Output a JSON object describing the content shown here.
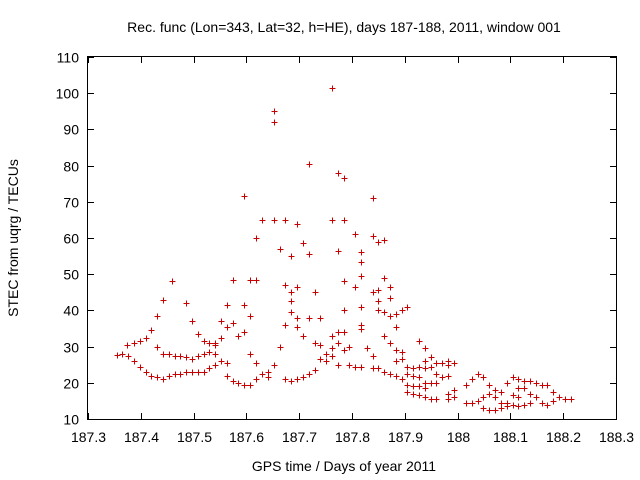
{
  "chart_data": {
    "type": "scatter",
    "title": "Rec. func (Lon=343, Lat=32, h=HE), days 187-188, 2011, window 001",
    "xlabel": "GPS time / Days of year 2011",
    "ylabel": "STEC from uqrg / TECUs",
    "xlim": [
      187.3,
      188.3
    ],
    "ylim": [
      10,
      110
    ],
    "xticks": [
      187.3,
      187.4,
      187.5,
      187.6,
      187.7,
      187.8,
      187.9,
      188,
      188.1,
      188.2,
      188.3
    ],
    "xtick_labels": [
      "187.3",
      "187.4",
      "187.5",
      "187.6",
      "187.7",
      "187.8",
      "187.9",
      "188",
      "188.1",
      "188.2",
      "188.3"
    ],
    "yticks": [
      10,
      20,
      30,
      40,
      50,
      60,
      70,
      80,
      90,
      100,
      110
    ],
    "ytick_labels": [
      "10",
      "20",
      "30",
      "40",
      "50",
      "60",
      "70",
      "80",
      "90",
      "100",
      "110"
    ],
    "grid": false,
    "marker": "plus",
    "marker_color": "#c80000",
    "points": [
      [
        187.354,
        27.7
      ],
      [
        187.365,
        28.0
      ],
      [
        187.376,
        27.5
      ],
      [
        187.373,
        30.5
      ],
      [
        187.387,
        31.0
      ],
      [
        187.398,
        31.5
      ],
      [
        187.387,
        26.0
      ],
      [
        187.398,
        24.5
      ],
      [
        187.409,
        23.0
      ],
      [
        187.42,
        22.0
      ],
      [
        187.431,
        21.5
      ],
      [
        187.442,
        21.0
      ],
      [
        187.409,
        32.5
      ],
      [
        187.42,
        34.5
      ],
      [
        187.431,
        38.5
      ],
      [
        187.442,
        43.0
      ],
      [
        187.459,
        48.0
      ],
      [
        187.431,
        30.0
      ],
      [
        187.442,
        28.0
      ],
      [
        187.453,
        28.0
      ],
      [
        187.464,
        27.5
      ],
      [
        187.475,
        27.5
      ],
      [
        187.486,
        27.0
      ],
      [
        187.453,
        22.0
      ],
      [
        187.464,
        22.5
      ],
      [
        187.475,
        22.5
      ],
      [
        187.486,
        23.0
      ],
      [
        187.497,
        23.0
      ],
      [
        187.508,
        23.0
      ],
      [
        187.486,
        42.0
      ],
      [
        187.497,
        37.0
      ],
      [
        187.508,
        33.5
      ],
      [
        187.519,
        31.5
      ],
      [
        187.53,
        31.0
      ],
      [
        187.541,
        31.0
      ],
      [
        187.497,
        26.5
      ],
      [
        187.508,
        27.5
      ],
      [
        187.519,
        28.0
      ],
      [
        187.53,
        28.5
      ],
      [
        187.541,
        28.0
      ],
      [
        187.519,
        23.0
      ],
      [
        187.53,
        24.0
      ],
      [
        187.541,
        25.0
      ],
      [
        187.552,
        26.0
      ],
      [
        187.563,
        25.5
      ],
      [
        187.541,
        30.5
      ],
      [
        187.552,
        32.5
      ],
      [
        187.563,
        35.5
      ],
      [
        187.563,
        41.5
      ],
      [
        187.574,
        48.5
      ],
      [
        187.574,
        36.5
      ],
      [
        187.552,
        37.0
      ],
      [
        187.563,
        22.0
      ],
      [
        187.574,
        20.5
      ],
      [
        187.585,
        20.0
      ],
      [
        187.596,
        19.5
      ],
      [
        187.607,
        19.5
      ],
      [
        187.585,
        33.0
      ],
      [
        187.596,
        34.0
      ],
      [
        187.596,
        41.5
      ],
      [
        187.596,
        71.5
      ],
      [
        187.607,
        48.5
      ],
      [
        187.618,
        48.5
      ],
      [
        187.607,
        38.5
      ],
      [
        187.607,
        28.0
      ],
      [
        187.618,
        25.5
      ],
      [
        187.618,
        21.0
      ],
      [
        187.629,
        22.5
      ],
      [
        187.64,
        23.0
      ],
      [
        187.618,
        60.0
      ],
      [
        187.629,
        65.0
      ],
      [
        187.652,
        95.0
      ],
      [
        187.652,
        92.0
      ],
      [
        187.652,
        65.0
      ],
      [
        187.64,
        21.5
      ],
      [
        187.652,
        25.0
      ],
      [
        187.663,
        30.0
      ],
      [
        187.663,
        57.0
      ],
      [
        187.674,
        21.0
      ],
      [
        187.685,
        20.5
      ],
      [
        187.674,
        47.0
      ],
      [
        187.685,
        45.0
      ],
      [
        187.685,
        42.5
      ],
      [
        187.674,
        65.0
      ],
      [
        187.685,
        55.0
      ],
      [
        187.696,
        46.5
      ],
      [
        187.674,
        36.0
      ],
      [
        187.685,
        39.5
      ],
      [
        187.696,
        35.5
      ],
      [
        187.696,
        38.0
      ],
      [
        187.707,
        33.0
      ],
      [
        187.707,
        58.5
      ],
      [
        187.696,
        21.0
      ],
      [
        187.707,
        21.5
      ],
      [
        187.718,
        22.5
      ],
      [
        187.729,
        23.5
      ],
      [
        187.696,
        64.0
      ],
      [
        187.718,
        80.5
      ],
      [
        187.718,
        55.5
      ],
      [
        187.718,
        38.0
      ],
      [
        187.729,
        45.0
      ],
      [
        187.729,
        31.0
      ],
      [
        187.74,
        30.5
      ],
      [
        187.74,
        26.5
      ],
      [
        187.751,
        26.0
      ],
      [
        187.751,
        28.0
      ],
      [
        187.762,
        27.5
      ],
      [
        187.762,
        29.5
      ],
      [
        187.74,
        38.0
      ],
      [
        187.762,
        101.5
      ],
      [
        187.762,
        65.0
      ],
      [
        187.762,
        33.0
      ],
      [
        187.773,
        34.0
      ],
      [
        187.773,
        31.0
      ],
      [
        187.773,
        25.0
      ],
      [
        187.773,
        78.0
      ],
      [
        187.784,
        76.5
      ],
      [
        187.784,
        65.0
      ],
      [
        187.773,
        56.5
      ],
      [
        187.784,
        48.0
      ],
      [
        187.784,
        40.0
      ],
      [
        187.784,
        34.0
      ],
      [
        187.784,
        29.0
      ],
      [
        187.795,
        30.0
      ],
      [
        187.795,
        25.0
      ],
      [
        187.806,
        24.5
      ],
      [
        187.817,
        24.5
      ],
      [
        187.806,
        61.0
      ],
      [
        187.806,
        46.5
      ],
      [
        187.817,
        49.5
      ],
      [
        187.817,
        56.0
      ],
      [
        187.817,
        53.5
      ],
      [
        187.817,
        41.0
      ],
      [
        187.817,
        36.0
      ],
      [
        187.817,
        35.0
      ],
      [
        187.828,
        29.5
      ],
      [
        187.839,
        27.5
      ],
      [
        187.839,
        24.0
      ],
      [
        187.85,
        24.0
      ],
      [
        187.839,
        71.0
      ],
      [
        187.839,
        60.5
      ],
      [
        187.85,
        59.0
      ],
      [
        187.861,
        59.5
      ],
      [
        187.839,
        45.0
      ],
      [
        187.85,
        45.5
      ],
      [
        187.85,
        42.5
      ],
      [
        187.85,
        40.0
      ],
      [
        187.861,
        39.5
      ],
      [
        187.861,
        49.0
      ],
      [
        187.872,
        46.5
      ],
      [
        187.872,
        43.5
      ],
      [
        187.861,
        33.0
      ],
      [
        187.872,
        31.0
      ],
      [
        187.883,
        29.0
      ],
      [
        187.894,
        28.5
      ],
      [
        187.861,
        23.0
      ],
      [
        187.872,
        22.5
      ],
      [
        187.872,
        38.5
      ],
      [
        187.883,
        39.0
      ],
      [
        187.883,
        35.5
      ],
      [
        187.894,
        40.0
      ],
      [
        187.905,
        41.0
      ],
      [
        187.883,
        26.0
      ],
      [
        187.894,
        26.5
      ],
      [
        187.905,
        24.5
      ],
      [
        187.916,
        24.0
      ],
      [
        187.927,
        24.5
      ],
      [
        187.938,
        24.0
      ],
      [
        187.883,
        22.0
      ],
      [
        187.894,
        21.0
      ],
      [
        187.905,
        19.5
      ],
      [
        187.916,
        19.0
      ],
      [
        187.927,
        19.0
      ],
      [
        187.938,
        18.5
      ],
      [
        187.905,
        17.5
      ],
      [
        187.916,
        17.0
      ],
      [
        187.927,
        16.5
      ],
      [
        187.938,
        16.0
      ],
      [
        187.949,
        15.5
      ],
      [
        187.96,
        15.5
      ],
      [
        187.905,
        22.5
      ],
      [
        187.916,
        22.0
      ],
      [
        187.927,
        21.5
      ],
      [
        187.938,
        20.0
      ],
      [
        187.949,
        20.0
      ],
      [
        187.96,
        20.0
      ],
      [
        187.927,
        31.5
      ],
      [
        187.938,
        29.5
      ],
      [
        187.949,
        27.0
      ],
      [
        187.96,
        25.5
      ],
      [
        187.971,
        25.5
      ],
      [
        187.982,
        26.0
      ],
      [
        187.938,
        26.0
      ],
      [
        187.949,
        24.5
      ],
      [
        187.96,
        22.5
      ],
      [
        187.971,
        21.5
      ],
      [
        187.982,
        22.0
      ],
      [
        187.993,
        18.0
      ],
      [
        187.982,
        25.0
      ],
      [
        187.993,
        25.5
      ],
      [
        187.982,
        17.0
      ],
      [
        187.993,
        16.0
      ],
      [
        187.982,
        15.5
      ],
      [
        188.016,
        19.5
      ],
      [
        188.016,
        14.5
      ],
      [
        188.027,
        14.5
      ],
      [
        188.038,
        15.0
      ],
      [
        188.027,
        21.0
      ],
      [
        188.038,
        22.5
      ],
      [
        188.049,
        21.5
      ],
      [
        188.049,
        16.0
      ],
      [
        188.06,
        17.0
      ],
      [
        188.071,
        16.0
      ],
      [
        188.049,
        13.0
      ],
      [
        188.06,
        12.5
      ],
      [
        188.06,
        19.5
      ],
      [
        188.071,
        18.0
      ],
      [
        188.082,
        17.5
      ],
      [
        188.082,
        14.5
      ],
      [
        188.093,
        14.5
      ],
      [
        188.104,
        14.0
      ],
      [
        188.071,
        12.5
      ],
      [
        188.082,
        13.0
      ],
      [
        188.093,
        13.5
      ],
      [
        188.093,
        20.0
      ],
      [
        188.104,
        21.5
      ],
      [
        188.115,
        21.0
      ],
      [
        188.115,
        13.5
      ],
      [
        188.126,
        14.0
      ],
      [
        188.137,
        14.5
      ],
      [
        188.104,
        16.5
      ],
      [
        188.115,
        18.5
      ],
      [
        188.126,
        20.5
      ],
      [
        188.137,
        17.0
      ],
      [
        188.148,
        16.0
      ],
      [
        188.148,
        20.0
      ],
      [
        188.159,
        19.5
      ],
      [
        188.17,
        19.5
      ],
      [
        188.159,
        14.5
      ],
      [
        188.17,
        14.0
      ],
      [
        188.181,
        15.0
      ],
      [
        188.181,
        17.5
      ],
      [
        188.192,
        16.0
      ],
      [
        188.203,
        15.5
      ],
      [
        188.214,
        15.5
      ],
      [
        188.137,
        20.5
      ],
      [
        188.126,
        18.5
      ],
      [
        188.115,
        16.0
      ]
    ]
  }
}
